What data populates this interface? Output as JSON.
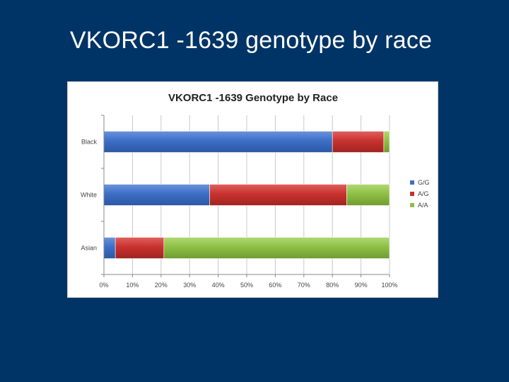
{
  "slide": {
    "title": "VKORC1 -1639 genotype by race"
  },
  "chart_data": {
    "type": "bar",
    "orientation": "horizontal",
    "stacked": "percent",
    "title": "VKORC1 -1639 Genotype by Race",
    "xlabel": "",
    "ylabel": "",
    "categories": [
      "Black",
      "White",
      "Asian"
    ],
    "series": [
      {
        "name": "G/G",
        "color": "#3d6fc6",
        "values": [
          80,
          37,
          4
        ]
      },
      {
        "name": "A/G",
        "color": "#c8322f",
        "values": [
          18,
          48,
          17
        ]
      },
      {
        "name": "A/A",
        "color": "#8fc045",
        "values": [
          2,
          15,
          79
        ]
      }
    ],
    "xlim": [
      0,
      100
    ],
    "xticks": [
      "0%",
      "10%",
      "20%",
      "30%",
      "40%",
      "50%",
      "60%",
      "70%",
      "80%",
      "90%",
      "100%"
    ],
    "grid": true,
    "legend_position": "right"
  }
}
